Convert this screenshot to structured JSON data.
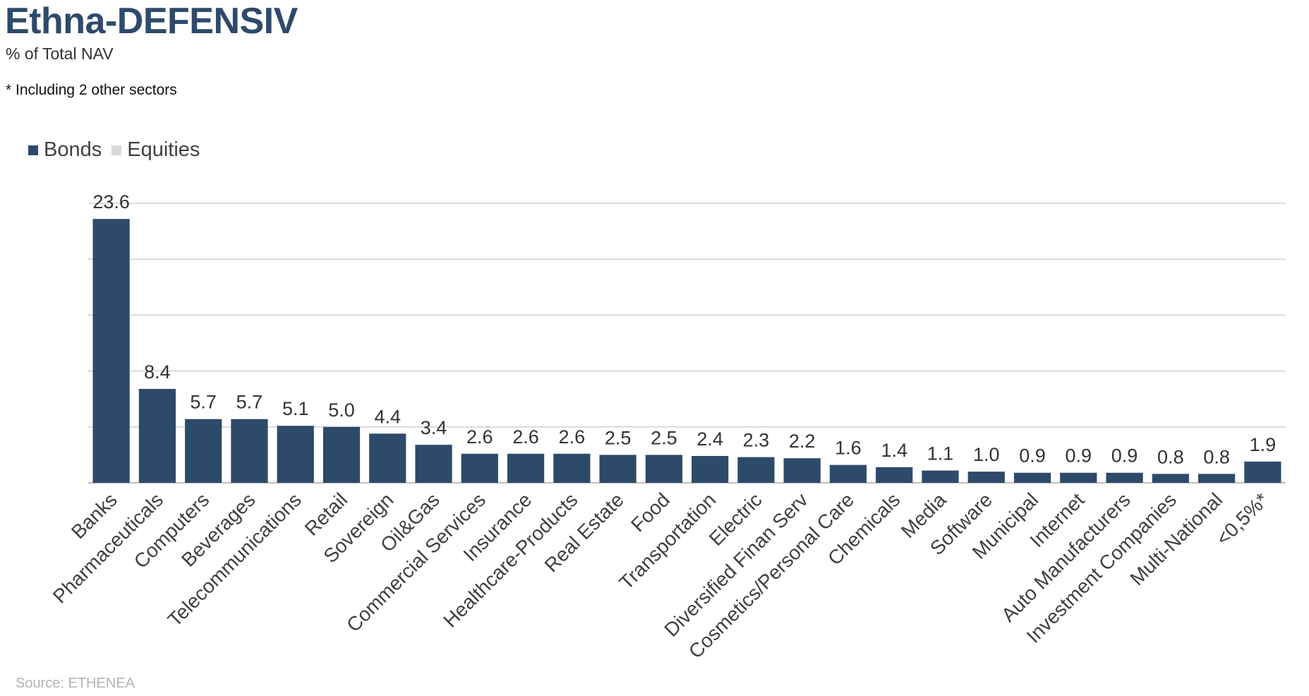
{
  "header": {
    "title": "Ethna-DEFENSIV",
    "subtitle": "% of Total NAV",
    "note": "* Including 2 other sectors"
  },
  "footer": {
    "source": "Source: ETHENEA"
  },
  "legend": [
    {
      "label": "Bonds",
      "color": "#2e4a6b"
    },
    {
      "label": "Equities",
      "color": "#d9d9d9"
    }
  ],
  "chart_data": {
    "type": "bar",
    "title": "Ethna-DEFENSIV",
    "subtitle": "% of Total NAV",
    "xlabel": "",
    "ylabel": "",
    "ylim": [
      0,
      25
    ],
    "grid": true,
    "legend_position": "top-left",
    "categories": [
      "Banks",
      "Pharmaceuticals",
      "Computers",
      "Beverages",
      "Telecommunications",
      "Retail",
      "Sovereign",
      "Oil&Gas",
      "Commercial Services",
      "Insurance",
      "Healthcare-Products",
      "Real Estate",
      "Food",
      "Transportation",
      "Electric",
      "Diversified Finan Serv",
      "Cosmetics/Personal Care",
      "Chemicals",
      "Media",
      "Software",
      "Municipal",
      "Internet",
      "Auto Manufacturers",
      "Investment Companies",
      "Multi-National",
      "<0,5%*"
    ],
    "series": [
      {
        "name": "Bonds",
        "color": "#2e4a6b",
        "values": [
          23.6,
          8.4,
          5.7,
          5.7,
          5.1,
          5.0,
          4.4,
          3.4,
          2.6,
          2.6,
          2.6,
          2.5,
          2.5,
          2.4,
          2.3,
          2.2,
          1.6,
          1.4,
          1.1,
          1.0,
          0.9,
          0.9,
          0.9,
          0.8,
          0.8,
          1.9
        ]
      },
      {
        "name": "Equities",
        "color": "#d9d9d9",
        "values": [
          0,
          0,
          0,
          0,
          0,
          0,
          0,
          0,
          0,
          0,
          0,
          0,
          0,
          0,
          0,
          0,
          0,
          0,
          0,
          0,
          0,
          0,
          0,
          0,
          0,
          0
        ]
      }
    ],
    "data_labels": [
      "23.6",
      "8.4",
      "5.7",
      "5.7",
      "5.1",
      "5.0",
      "4.4",
      "3.4",
      "2.6",
      "2.6",
      "2.6",
      "2.5",
      "2.5",
      "2.4",
      "2.3",
      "2.2",
      "1.6",
      "1.4",
      "1.1",
      "1.0",
      "0.9",
      "0.9",
      "0.9",
      "0.8",
      "0.8",
      "1.9"
    ]
  }
}
